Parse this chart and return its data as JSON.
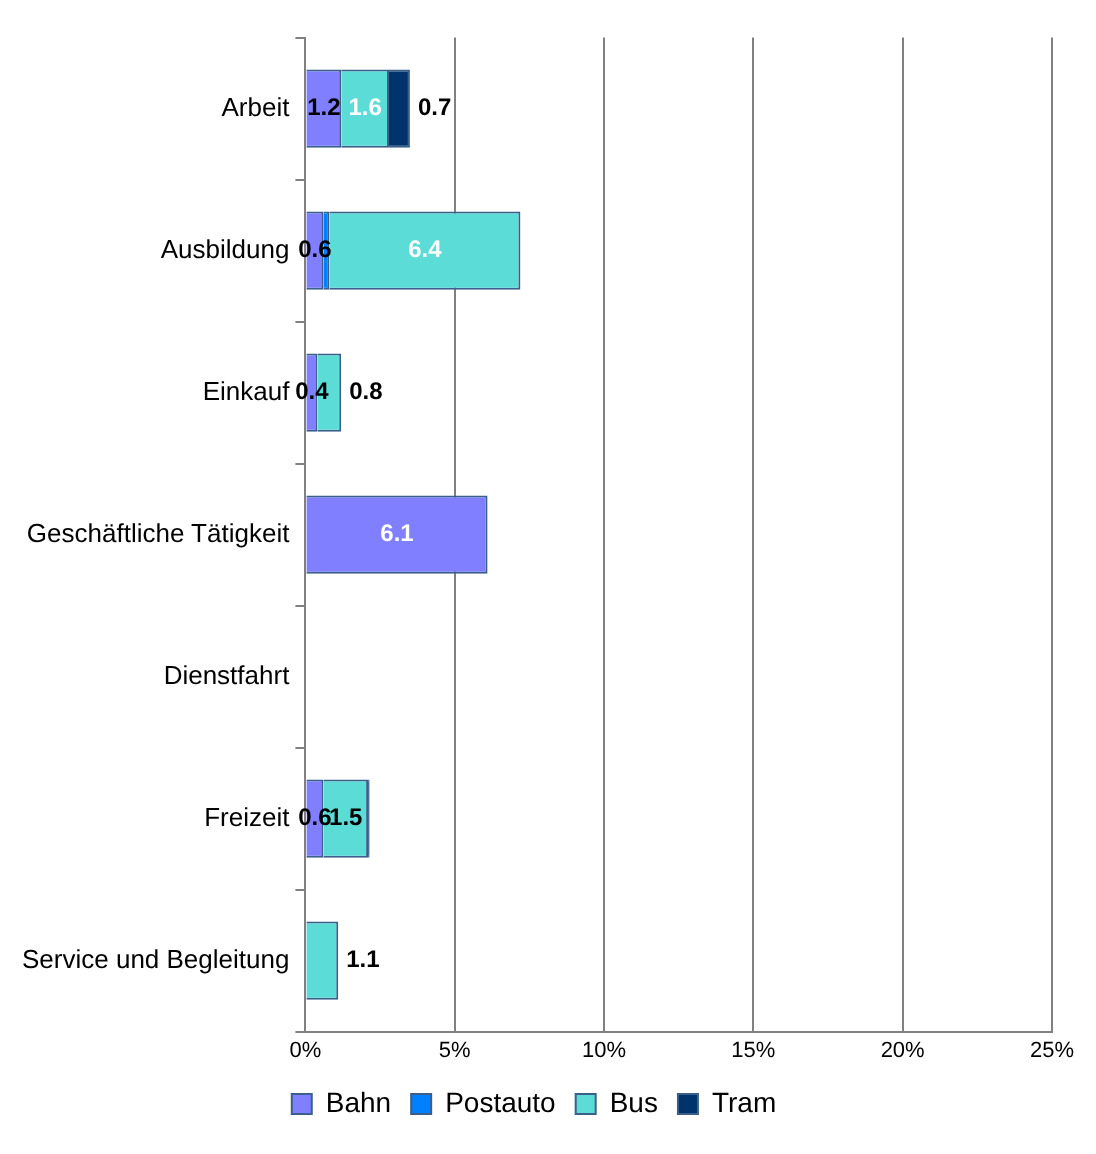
{
  "chart_data": {
    "type": "bar",
    "orientation": "horizontal",
    "stacked": true,
    "categories": [
      "Arbeit",
      "Ausbildung",
      "Einkauf",
      "Geschäftliche Tätigkeit",
      "Dienstfahrt",
      "Freizeit",
      "Service und Begleitung"
    ],
    "series": [
      {
        "name": "Bahn",
        "color": "#7f7fff",
        "values": [
          1.2,
          0.6,
          0.4,
          6.1,
          null,
          0.6,
          null
        ],
        "value_labels": [
          "1.2",
          "0.6",
          "0.4",
          "6.1",
          null,
          "0.6",
          null
        ]
      },
      {
        "name": "Postauto",
        "color": "#0080ff",
        "values": [
          null,
          0.2,
          null,
          null,
          null,
          null,
          null
        ],
        "value_labels": [
          null,
          null,
          null,
          null,
          null,
          null,
          null
        ]
      },
      {
        "name": "Bus",
        "color": "#5bdcd6",
        "values": [
          1.6,
          6.4,
          0.8,
          null,
          null,
          1.5,
          1.1
        ],
        "value_labels": [
          "1.6",
          "6.4",
          "0.8",
          null,
          null,
          "1.5",
          "1.1"
        ]
      },
      {
        "name": "Tram",
        "color": "#00336b",
        "values": [
          0.7,
          null,
          null,
          null,
          null,
          0.05,
          null
        ],
        "value_labels": [
          "0.7",
          null,
          null,
          null,
          null,
          null,
          null
        ]
      }
    ],
    "xlim": [
      0,
      25
    ],
    "xticks": [
      {
        "value": 0,
        "label": "0%"
      },
      {
        "value": 5,
        "label": "5%"
      },
      {
        "value": 10,
        "label": "10%"
      },
      {
        "value": 15,
        "label": "15%"
      },
      {
        "value": 20,
        "label": "20%"
      },
      {
        "value": 25,
        "label": "25%"
      }
    ],
    "grid": "x",
    "legend": "bottom"
  }
}
